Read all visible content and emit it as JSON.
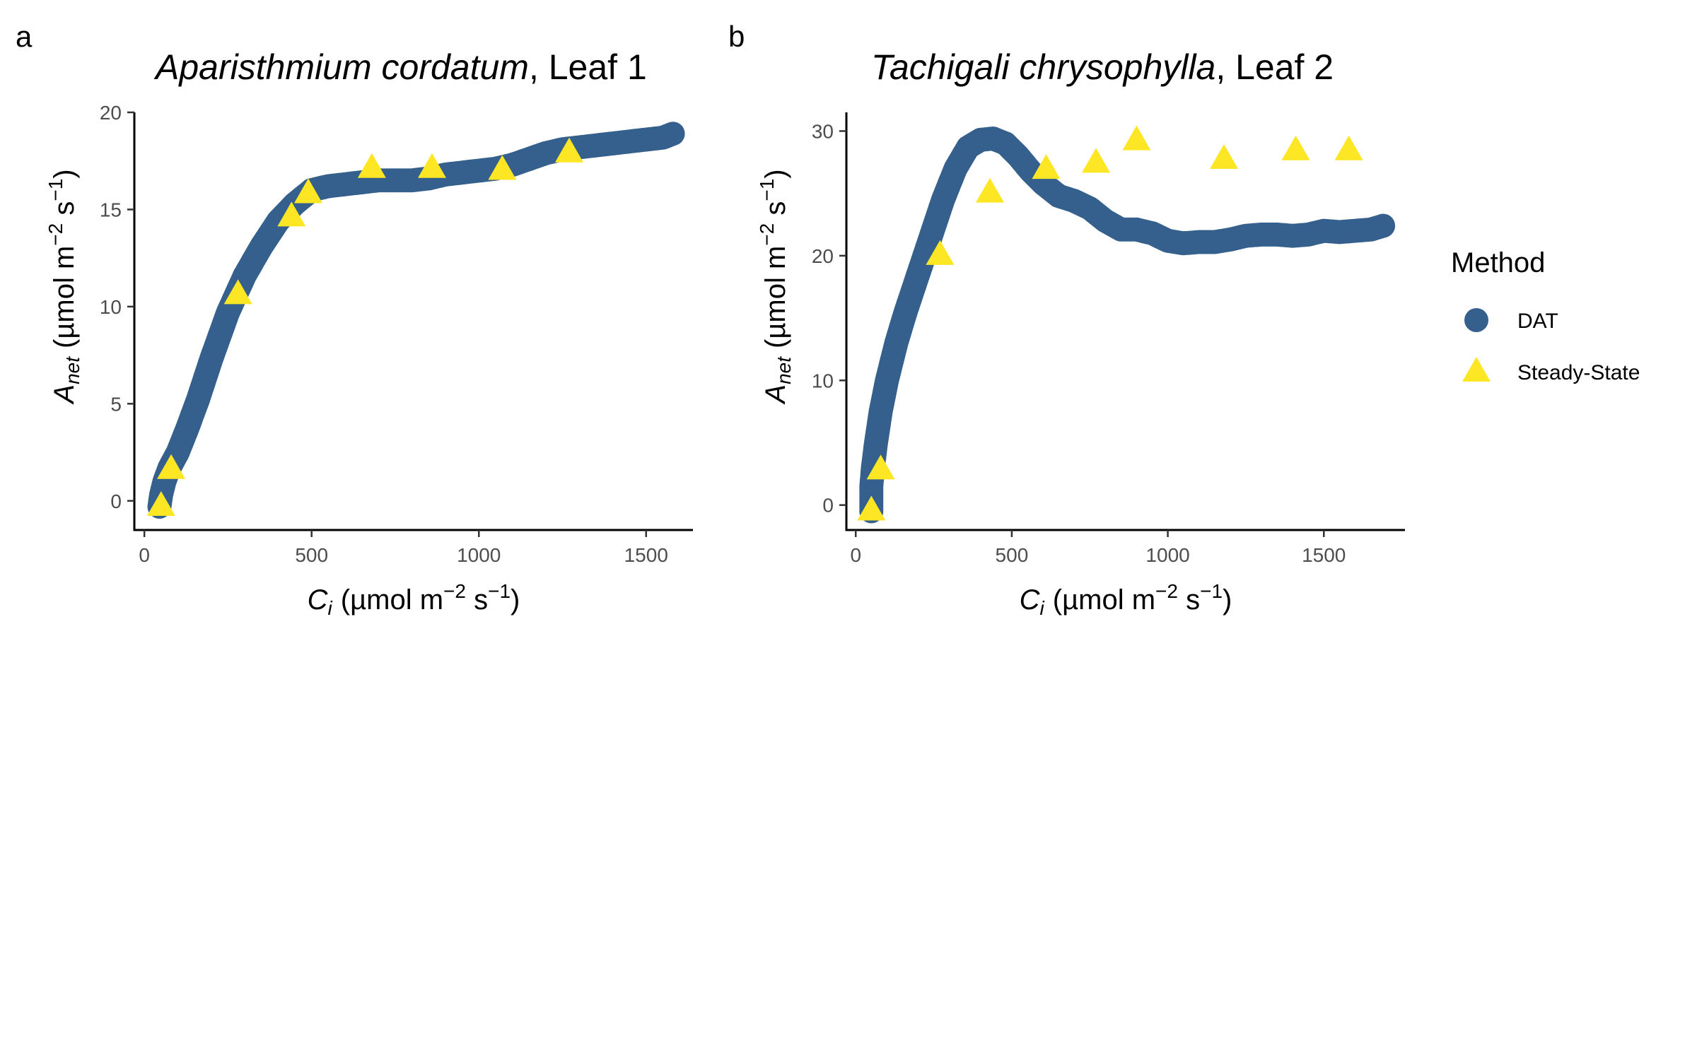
{
  "legend": {
    "title": "Method",
    "items": [
      {
        "label": "DAT",
        "shape": "circle",
        "color": "#35608D"
      },
      {
        "label": "Steady-State",
        "shape": "triangle",
        "color": "#FDE725"
      }
    ]
  },
  "colors": {
    "dat": "#35608D",
    "steady_state": "#FDE725",
    "tick_text": "#4d4d4d"
  },
  "chart_data": [
    {
      "type": "scatter",
      "panel_letter": "a",
      "title_species": "Aparisthmium cordatum",
      "title_suffix": ", Leaf 1",
      "xlabel": {
        "main": "C",
        "sub": "i",
        "unit": "(µmol m",
        "exp1": "−2",
        "mid": " s",
        "exp2": "−1",
        "close": ")"
      },
      "ylabel": {
        "main": "A",
        "sub": "net",
        "unit": "(µmol m",
        "exp1": "−2",
        "mid": " s",
        "exp2": "−1",
        "close": ")"
      },
      "xlim": [
        -30,
        1640
      ],
      "ylim": [
        -1.5,
        20
      ],
      "xticks": [
        0,
        500,
        1000,
        1500
      ],
      "xtick_labels": [
        "0",
        "500",
        "1000",
        "1500"
      ],
      "yticks": [
        0,
        5,
        10,
        15,
        20
      ],
      "ytick_labels": [
        "0",
        "5",
        "10",
        "15",
        "20"
      ],
      "series": [
        {
          "name": "DAT",
          "marker": "circle",
          "curve_points": [
            [
              45,
              -0.3
            ],
            [
              50,
              0.3
            ],
            [
              60,
              1.0
            ],
            [
              75,
              1.7
            ],
            [
              100,
              2.5
            ],
            [
              130,
              3.8
            ],
            [
              160,
              5.2
            ],
            [
              200,
              7.3
            ],
            [
              250,
              9.7
            ],
            [
              300,
              11.6
            ],
            [
              350,
              13.1
            ],
            [
              400,
              14.4
            ],
            [
              450,
              15.3
            ],
            [
              500,
              16.0
            ],
            [
              550,
              16.2
            ],
            [
              600,
              16.3
            ],
            [
              650,
              16.4
            ],
            [
              700,
              16.5
            ],
            [
              750,
              16.5
            ],
            [
              800,
              16.5
            ],
            [
              850,
              16.6
            ],
            [
              900,
              16.8
            ],
            [
              950,
              16.9
            ],
            [
              1000,
              17.0
            ],
            [
              1050,
              17.1
            ],
            [
              1100,
              17.3
            ],
            [
              1150,
              17.6
            ],
            [
              1200,
              17.9
            ],
            [
              1250,
              18.1
            ],
            [
              1300,
              18.2
            ],
            [
              1350,
              18.3
            ],
            [
              1400,
              18.4
            ],
            [
              1450,
              18.5
            ],
            [
              1500,
              18.6
            ],
            [
              1550,
              18.7
            ],
            [
              1580,
              18.9
            ]
          ]
        },
        {
          "name": "Steady-State",
          "marker": "triangle",
          "points": [
            [
              50,
              -0.3
            ],
            [
              80,
              1.6
            ],
            [
              280,
              10.6
            ],
            [
              440,
              14.6
            ],
            [
              490,
              15.8
            ],
            [
              680,
              17.1
            ],
            [
              860,
              17.1
            ],
            [
              1070,
              17.0
            ],
            [
              1270,
              17.9
            ]
          ]
        }
      ]
    },
    {
      "type": "scatter",
      "panel_letter": "b",
      "title_species": "Tachigali chrysophylla",
      "title_suffix": ", Leaf 2",
      "xlabel": {
        "main": "C",
        "sub": "i",
        "unit": "(µmol m",
        "exp1": "−2",
        "mid": " s",
        "exp2": "−1",
        "close": ")"
      },
      "ylabel": {
        "main": "A",
        "sub": "net",
        "unit": "(µmol m",
        "exp1": "−2",
        "mid": " s",
        "exp2": "−1",
        "close": ")"
      },
      "xlim": [
        -30,
        1760
      ],
      "ylim": [
        -2,
        31.5
      ],
      "xticks": [
        0,
        500,
        1000,
        1500
      ],
      "xtick_labels": [
        "0",
        "500",
        "1000",
        "1500"
      ],
      "yticks": [
        0,
        10,
        20,
        30
      ],
      "ytick_labels": [
        "0",
        "10",
        "20",
        "30"
      ],
      "series": [
        {
          "name": "DAT",
          "marker": "circle",
          "curve_points": [
            [
              50,
              -0.5
            ],
            [
              50,
              1.5
            ],
            [
              55,
              3.0
            ],
            [
              65,
              5.0
            ],
            [
              80,
              7.5
            ],
            [
              100,
              10.0
            ],
            [
              130,
              13.0
            ],
            [
              160,
              15.5
            ],
            [
              200,
              18.5
            ],
            [
              240,
              21.5
            ],
            [
              280,
              24.5
            ],
            [
              320,
              27.0
            ],
            [
              360,
              28.7
            ],
            [
              400,
              29.3
            ],
            [
              440,
              29.4
            ],
            [
              480,
              29.0
            ],
            [
              520,
              28.0
            ],
            [
              560,
              26.8
            ],
            [
              600,
              25.8
            ],
            [
              650,
              24.8
            ],
            [
              700,
              24.4
            ],
            [
              750,
              23.8
            ],
            [
              800,
              22.8
            ],
            [
              850,
              22.1
            ],
            [
              900,
              22.1
            ],
            [
              950,
              21.8
            ],
            [
              1000,
              21.2
            ],
            [
              1050,
              21.0
            ],
            [
              1100,
              21.1
            ],
            [
              1150,
              21.1
            ],
            [
              1200,
              21.3
            ],
            [
              1250,
              21.6
            ],
            [
              1300,
              21.7
            ],
            [
              1350,
              21.7
            ],
            [
              1400,
              21.6
            ],
            [
              1450,
              21.7
            ],
            [
              1500,
              22.0
            ],
            [
              1550,
              21.9
            ],
            [
              1600,
              22.0
            ],
            [
              1650,
              22.1
            ],
            [
              1690,
              22.4
            ]
          ]
        },
        {
          "name": "Steady-State",
          "marker": "triangle",
          "points": [
            [
              50,
              -0.5
            ],
            [
              80,
              2.8
            ],
            [
              270,
              20.0
            ],
            [
              430,
              25.0
            ],
            [
              610,
              26.9
            ],
            [
              770,
              27.4
            ],
            [
              900,
              29.2
            ],
            [
              1180,
              27.7
            ],
            [
              1410,
              28.4
            ],
            [
              1580,
              28.4
            ]
          ]
        }
      ]
    }
  ]
}
